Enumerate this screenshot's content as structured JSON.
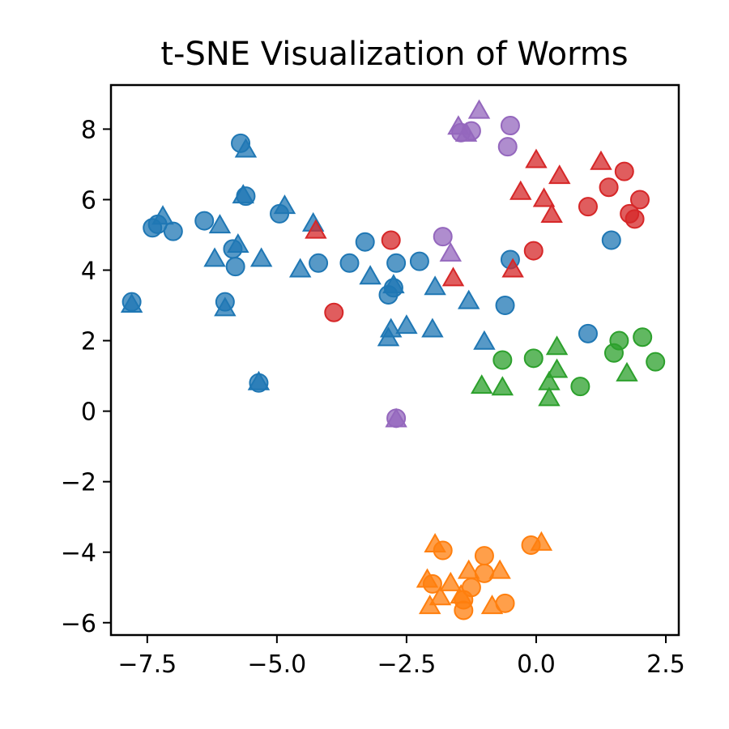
{
  "chart_data": {
    "type": "scatter",
    "title": "t-SNE Visualization of Worms",
    "xlabel": "",
    "ylabel": "",
    "xlim": [
      -8.2,
      2.75
    ],
    "ylim": [
      -6.35,
      9.25
    ],
    "xticks": [
      -7.5,
      -5.0,
      -2.5,
      0.0,
      2.5
    ],
    "xtick_labels": [
      "−7.5",
      "−5.0",
      "−2.5",
      "0.0",
      "2.5"
    ],
    "yticks": [
      -6,
      -4,
      -2,
      0,
      2,
      4,
      6,
      8
    ],
    "ytick_labels": [
      "−6",
      "−4",
      "−2",
      "0",
      "2",
      "4",
      "6",
      "8"
    ],
    "grid": false,
    "legend": "none",
    "marker_opacity": 0.75,
    "series": [
      {
        "color": "#1f77b4",
        "circles": [
          [
            -5.7,
            7.6
          ],
          [
            -5.6,
            6.1
          ],
          [
            -7.4,
            5.2
          ],
          [
            -7.3,
            5.3
          ],
          [
            -7.0,
            5.1
          ],
          [
            -6.4,
            5.4
          ],
          [
            -4.95,
            5.6
          ],
          [
            -5.85,
            4.6
          ],
          [
            -5.8,
            4.1
          ],
          [
            -4.2,
            4.2
          ],
          [
            -3.6,
            4.2
          ],
          [
            -3.3,
            4.8
          ],
          [
            -2.7,
            4.2
          ],
          [
            -2.25,
            4.25
          ],
          [
            -2.75,
            3.5
          ],
          [
            -2.85,
            3.3
          ],
          [
            -6.0,
            3.1
          ],
          [
            -7.8,
            3.1
          ],
          [
            -5.35,
            0.8
          ],
          [
            -0.5,
            4.3
          ],
          [
            -0.6,
            3.0
          ],
          [
            1.0,
            2.2
          ],
          [
            1.45,
            4.85
          ]
        ],
        "triangles": [
          [
            -5.6,
            7.4
          ],
          [
            -5.65,
            6.1
          ],
          [
            -7.2,
            5.5
          ],
          [
            -6.1,
            5.25
          ],
          [
            -4.85,
            5.8
          ],
          [
            -4.3,
            5.3
          ],
          [
            -5.75,
            4.7
          ],
          [
            -6.2,
            4.3
          ],
          [
            -5.3,
            4.3
          ],
          [
            -4.55,
            4.0
          ],
          [
            -3.2,
            3.8
          ],
          [
            -2.75,
            3.55
          ],
          [
            -6.0,
            2.9
          ],
          [
            -7.8,
            3.0
          ],
          [
            -5.35,
            0.8
          ],
          [
            -1.95,
            3.5
          ],
          [
            -1.3,
            3.1
          ],
          [
            -2.0,
            2.3
          ],
          [
            -2.5,
            2.4
          ],
          [
            -2.8,
            2.3
          ],
          [
            -2.85,
            2.05
          ],
          [
            -1.0,
            1.95
          ]
        ]
      },
      {
        "color": "#ff7f0e",
        "circles": [
          [
            -1.8,
            -3.95
          ],
          [
            -1.0,
            -4.1
          ],
          [
            -2.0,
            -4.9
          ],
          [
            -1.25,
            -5.0
          ],
          [
            -1.4,
            -5.35
          ],
          [
            -1.4,
            -5.65
          ],
          [
            -0.6,
            -5.45
          ],
          [
            -0.1,
            -3.8
          ],
          [
            -1.0,
            -4.6
          ]
        ],
        "triangles": [
          [
            -1.95,
            -3.8
          ],
          [
            -2.1,
            -4.8
          ],
          [
            -1.65,
            -4.9
          ],
          [
            -1.3,
            -4.55
          ],
          [
            -0.7,
            -4.55
          ],
          [
            -1.85,
            -5.3
          ],
          [
            -2.05,
            -5.55
          ],
          [
            -1.45,
            -5.25
          ],
          [
            -0.85,
            -5.55
          ],
          [
            0.1,
            -3.75
          ]
        ]
      },
      {
        "color": "#2ca02c",
        "circles": [
          [
            -0.65,
            1.45
          ],
          [
            -0.05,
            1.5
          ],
          [
            0.85,
            0.7
          ],
          [
            1.6,
            2.0
          ],
          [
            2.05,
            2.1
          ],
          [
            1.5,
            1.65
          ],
          [
            2.3,
            1.4
          ]
        ],
        "triangles": [
          [
            -1.05,
            0.7
          ],
          [
            -0.65,
            0.65
          ],
          [
            0.25,
            0.8
          ],
          [
            0.25,
            0.35
          ],
          [
            0.4,
            1.8
          ],
          [
            0.4,
            1.15
          ],
          [
            1.75,
            1.05
          ]
        ]
      },
      {
        "color": "#d62728",
        "circles": [
          [
            -2.8,
            4.85
          ],
          [
            -3.9,
            2.8
          ],
          [
            -0.05,
            4.55
          ],
          [
            1.0,
            5.8
          ],
          [
            1.4,
            6.35
          ],
          [
            1.7,
            6.8
          ],
          [
            1.8,
            5.6
          ],
          [
            1.9,
            5.45
          ],
          [
            2.0,
            6.0
          ]
        ],
        "triangles": [
          [
            -4.25,
            5.1
          ],
          [
            -1.6,
            3.75
          ],
          [
            -0.45,
            4.0
          ],
          [
            -0.3,
            6.2
          ],
          [
            0.0,
            7.1
          ],
          [
            0.15,
            6.0
          ],
          [
            0.3,
            5.55
          ],
          [
            0.45,
            6.65
          ],
          [
            1.25,
            7.05
          ]
        ]
      },
      {
        "color": "#9467bd",
        "circles": [
          [
            -1.45,
            7.9
          ],
          [
            -1.25,
            7.95
          ],
          [
            -0.55,
            7.5
          ],
          [
            -0.5,
            8.1
          ],
          [
            -1.8,
            4.95
          ],
          [
            -2.7,
            -0.2
          ]
        ],
        "triangles": [
          [
            -1.5,
            8.05
          ],
          [
            -1.35,
            7.85
          ],
          [
            -1.1,
            8.5
          ],
          [
            -1.65,
            4.45
          ],
          [
            -2.7,
            -0.25
          ]
        ]
      }
    ]
  }
}
